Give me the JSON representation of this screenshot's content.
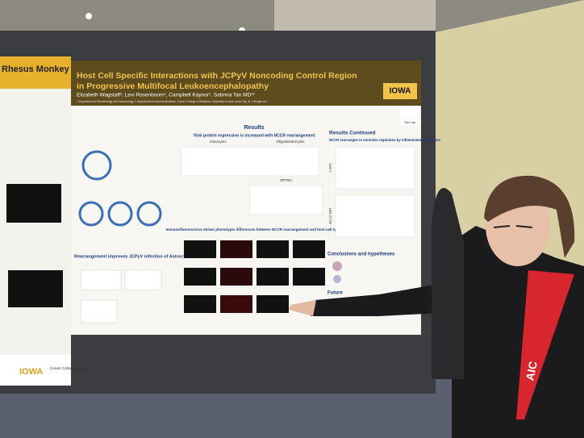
{
  "left_poster": {
    "title": "Rhesus Monkey",
    "logo": "IOWA",
    "college": "Carver College of Medicine"
  },
  "poster": {
    "title_lines": [
      "Host Cell Specific Interactions with JCPyV Noncoding Control Region",
      "in Progressive Multifocal Leukoencephalopathy"
    ],
    "authors": "Elizabeth Wagstaff¹, Levi Rosenboom¹, Campbell Kaynor¹, Sabrina Tan MD¹²",
    "affiliations": "1 Department of Microbiology and Immunology, 2 Department of Internal Medicine, Carver College of Medicine, University of Iowa, Iowa City, IA, 3 Biogen Inc.",
    "logo": "IOWA",
    "lab": "Tan Lab",
    "sections": {
      "results": "Results",
      "viral_protein": "Viral protein expression is increased with NCCR rearrangement",
      "astrocytes": "Astrocytes",
      "oligodendrocytes": "Oligodendrocytes",
      "rptec": "RPTEC",
      "rearrangement": "Rearrangement improves JCPyV infection of Astrocytes",
      "immunofluorescence": "Immunofluorescence shows phenotypic differences between NCCR rearrangement and host cell types",
      "results_continued": "Results Continued",
      "cytokines": "NCCR rearranges to minimize regulation by inflammatory cytokines",
      "dpi_7": "7 DPI",
      "dpi_10_12": "10-12 DPI",
      "conclusions": "Conclusions and hypotheses",
      "future": "Future"
    }
  },
  "lanyard": "AIC"
}
